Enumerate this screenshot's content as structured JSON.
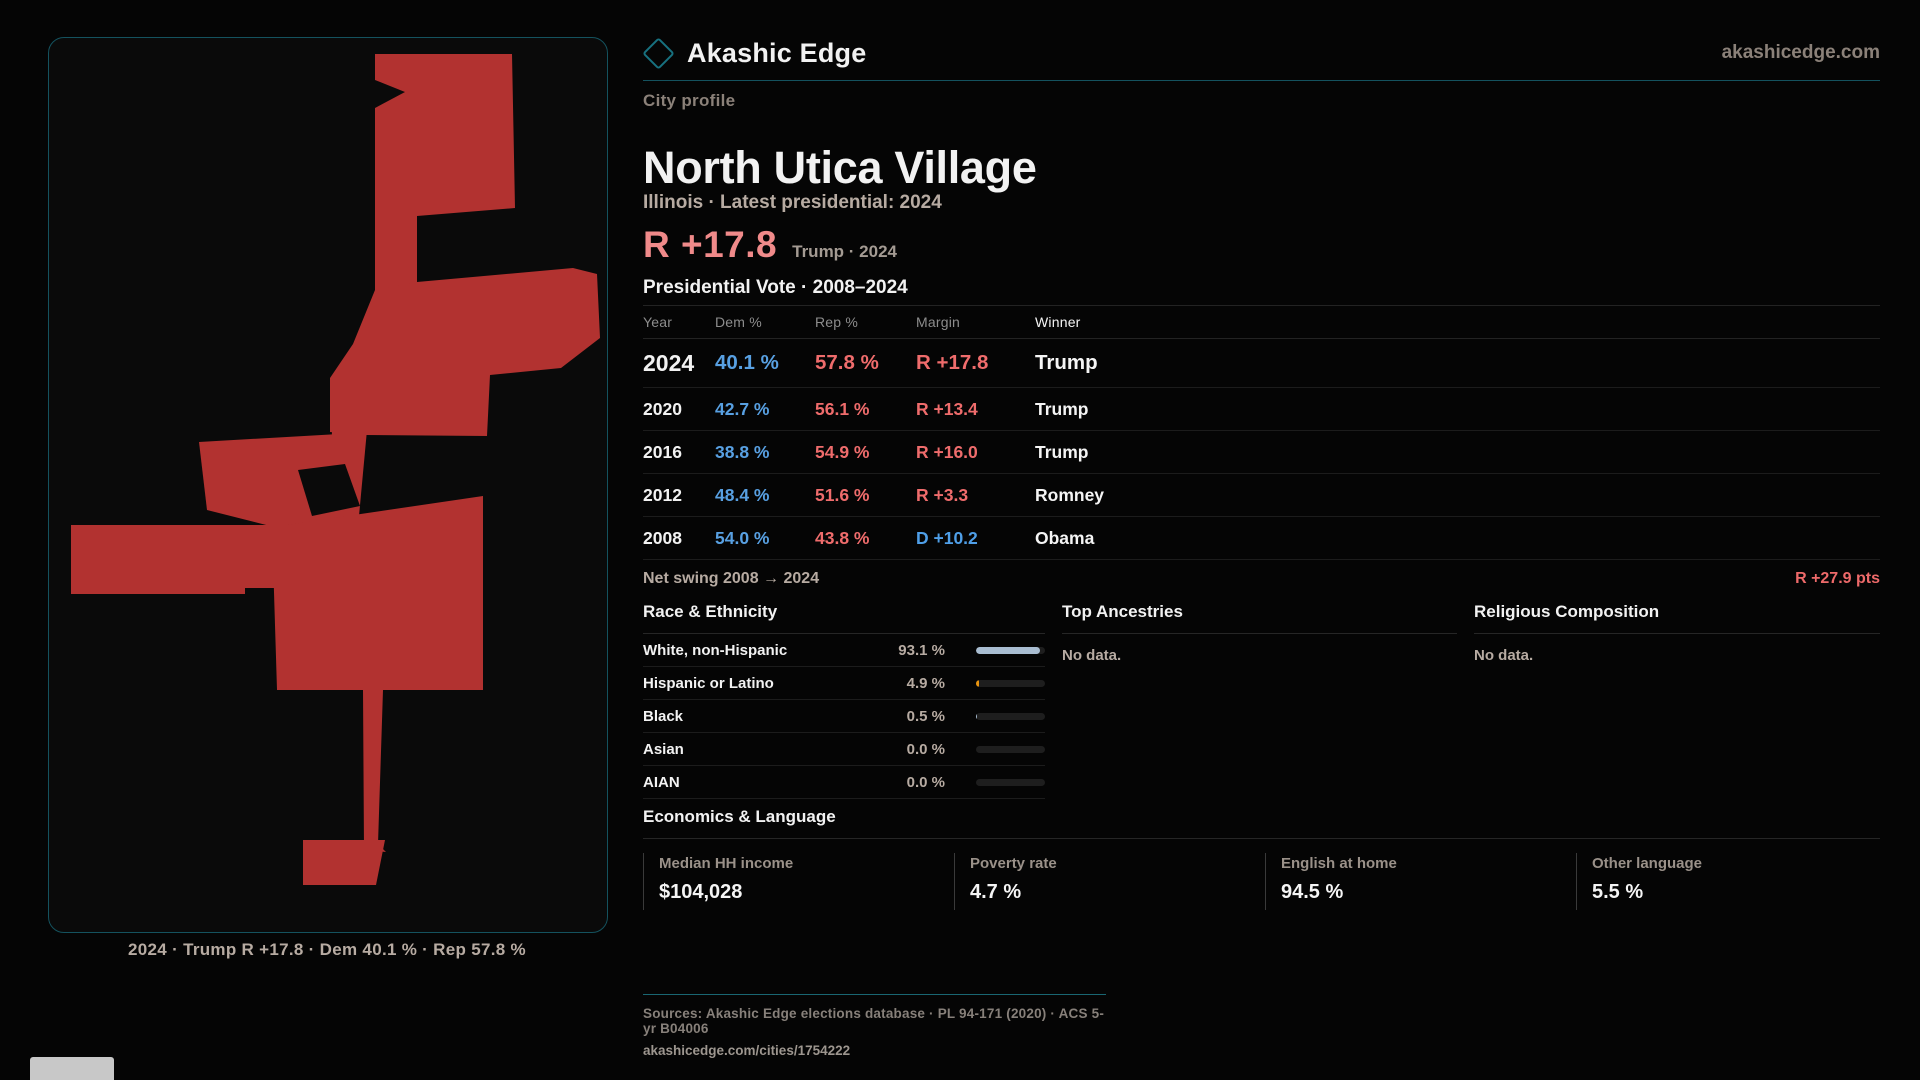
{
  "brand": {
    "name": "Akashic Edge",
    "domain": "akashicedge.com",
    "logo_icon": "diamond-icon"
  },
  "map": {
    "caption": "2024 · Trump R +17.8 · Dem 40.1 % · Rep 57.8 %",
    "fill_color": "#b23230",
    "border_color": "#14525e"
  },
  "profile": {
    "kicker": "City profile",
    "title": "North Utica Village",
    "subtitle": "Illinois · Latest presidential: 2024",
    "headline_margin": "R +17.8",
    "headline_context": "Trump · 2024"
  },
  "vote_table": {
    "title": "Presidential Vote · 2008–2024",
    "columns": [
      "Year",
      "Dem %",
      "Rep %",
      "Margin",
      "Winner"
    ],
    "rows": [
      {
        "year": "2024",
        "dem": "40.1 %",
        "rep": "57.8 %",
        "margin": "R +17.8",
        "margin_party": "R",
        "winner": "Trump",
        "emphasis": true
      },
      {
        "year": "2020",
        "dem": "42.7 %",
        "rep": "56.1 %",
        "margin": "R +13.4",
        "margin_party": "R",
        "winner": "Trump",
        "emphasis": false
      },
      {
        "year": "2016",
        "dem": "38.8 %",
        "rep": "54.9 %",
        "margin": "R +16.0",
        "margin_party": "R",
        "winner": "Trump",
        "emphasis": false
      },
      {
        "year": "2012",
        "dem": "48.4 %",
        "rep": "51.6 %",
        "margin": "R +3.3",
        "margin_party": "R",
        "winner": "Romney",
        "emphasis": false
      },
      {
        "year": "2008",
        "dem": "54.0 %",
        "rep": "43.8 %",
        "margin": "D +10.2",
        "margin_party": "D",
        "winner": "Obama",
        "emphasis": false
      }
    ],
    "net_swing_label": "Net swing 2008 → 2024",
    "net_swing_value": "R +27.9 pts"
  },
  "demographics": {
    "race_title": "Race & Ethnicity",
    "races": [
      {
        "label": "White, non-Hispanic",
        "value": "93.1 %",
        "pct": 93.1,
        "bar_color": "#a9bdd1"
      },
      {
        "label": "Hispanic or Latino",
        "value": "4.9 %",
        "pct": 4.9,
        "bar_color": "#e8940f"
      },
      {
        "label": "Black",
        "value": "0.5 %",
        "pct": 0.5,
        "bar_color": "#a9bdd1"
      },
      {
        "label": "Asian",
        "value": "0.0 %",
        "pct": 0,
        "bar_color": "#a9bdd1"
      },
      {
        "label": "AIAN",
        "value": "0.0 %",
        "pct": 0,
        "bar_color": "#a9bdd1"
      }
    ],
    "ancestries_title": "Top Ancestries",
    "ancestries_empty": "No data.",
    "religion_title": "Religious Composition",
    "religion_empty": "No data."
  },
  "economics": {
    "title": "Economics & Language",
    "stats": [
      {
        "label": "Median HH income",
        "value": "$104,028"
      },
      {
        "label": "Poverty rate",
        "value": "4.7 %"
      },
      {
        "label": "English at home",
        "value": "94.5 %"
      },
      {
        "label": "Other language",
        "value": "5.5 %"
      }
    ]
  },
  "footer": {
    "sources": "Sources: Akashic Edge elections database · PL 94-171 (2020) · ACS 5-yr B04006",
    "permalink": "akashicedge.com/cities/1754222"
  },
  "colors": {
    "accent_teal": "#14525e",
    "map_red": "#b23230",
    "dem_blue": "#58a0e2",
    "rep_red": "#ef6c6c",
    "headline_salmon": "#f08a8a",
    "bar_white": "#a9bdd1",
    "bar_orange": "#e8940f"
  }
}
